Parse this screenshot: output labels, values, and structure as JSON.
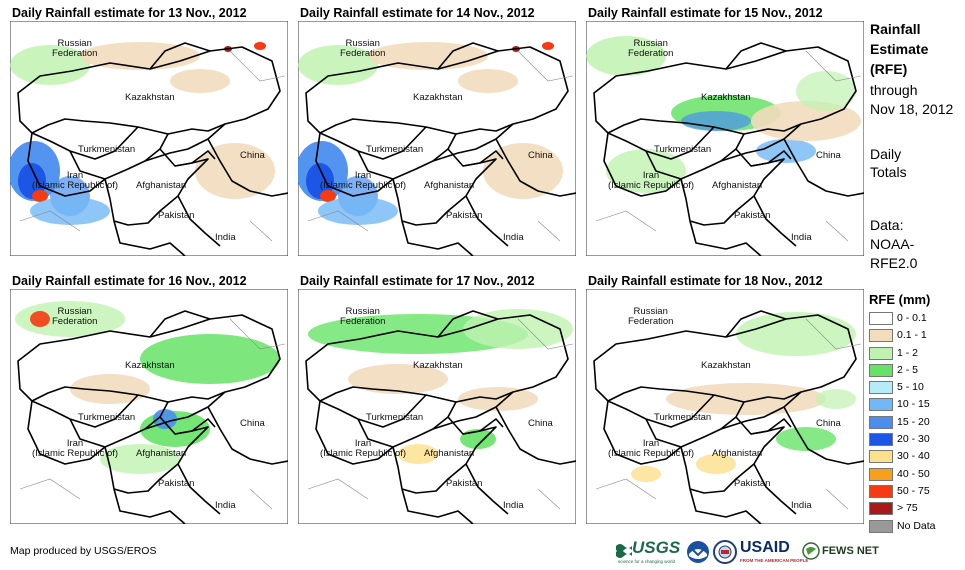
{
  "panels": [
    {
      "title": "Daily Rainfall estimate for 13 Nov., 2012",
      "intensity": "west-heavy"
    },
    {
      "title": "Daily Rainfall estimate for 14 Nov., 2012",
      "intensity": "west-heavy"
    },
    {
      "title": "Daily Rainfall estimate for 15 Nov., 2012",
      "intensity": "central"
    },
    {
      "title": "Daily Rainfall estimate for 16 Nov., 2012",
      "intensity": "central-east"
    },
    {
      "title": "Daily Rainfall estimate for 17 Nov., 2012",
      "intensity": "north"
    },
    {
      "title": "Daily Rainfall estimate for 18 Nov., 2012",
      "intensity": "light"
    }
  ],
  "map_labels": {
    "russia": "Russian\nFederation",
    "kazakhstan": "Kazakhstan",
    "turkmenistan": "Turkmenistan",
    "iran": "Iran\n(Islamic Republic of)",
    "afghanistan": "Afghanistan",
    "pakistan": "Pakistan",
    "india": "India",
    "china": "China"
  },
  "sidebar": {
    "title_line1": "Rainfall",
    "title_line2": "Estimate",
    "title_line3": "(RFE)",
    "through_line1": "through",
    "through_line2": "Nov 18, 2012",
    "daily_line1": "Daily",
    "daily_line2": "Totals",
    "data_line1": "Data:",
    "data_line2": "NOAA-",
    "data_line3": "RFE2.0"
  },
  "legend": {
    "title": "RFE (mm)",
    "items": [
      {
        "label": "0 - 0.1",
        "color": "#ffffff"
      },
      {
        "label": "0.1 - 1",
        "color": "#f2dcbc"
      },
      {
        "label": "1 - 2",
        "color": "#bff2b0"
      },
      {
        "label": "2 - 5",
        "color": "#66e366"
      },
      {
        "label": "5 - 10",
        "color": "#b4ecf7"
      },
      {
        "label": "10 - 15",
        "color": "#72b8f5"
      },
      {
        "label": "15 - 20",
        "color": "#4a8eef"
      },
      {
        "label": "20 - 30",
        "color": "#1c56e6"
      },
      {
        "label": "30 - 40",
        "color": "#fce08a"
      },
      {
        "label": "40 - 50",
        "color": "#f6a01e"
      },
      {
        "label": "50 - 75",
        "color": "#f43b12"
      },
      {
        "label": "> 75",
        "color": "#a61a1a"
      },
      {
        "label": "No Data",
        "color": "#999999"
      }
    ]
  },
  "footer": {
    "credit": "Map produced by USGS/EROS",
    "logos": {
      "usgs": "USGS",
      "usgs_tagline": "science for a changing world",
      "noaa_icon": "noaa-logo-icon",
      "usaid": "USAID",
      "usaid_tagline": "FROM THE AMERICAN PEOPLE",
      "fewsnet": "FEWS NET"
    }
  }
}
